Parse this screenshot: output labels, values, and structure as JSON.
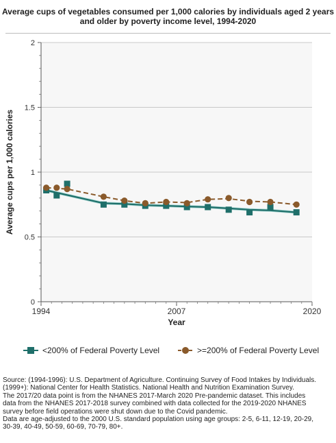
{
  "title": "Average cups of vegetables consumed per 1,000 calories by individuals aged 2 years and older by poverty income level, 1994-2020",
  "colors": {
    "series_low": "#1f6f6a",
    "series_high": "#8a5a2b",
    "plot_bg": "#f7f7f7",
    "grid": "#c8c8c8"
  },
  "legend": {
    "low": "<200% of Federal Poverty Level",
    "high": ">=200% of Federal Poverty Level"
  },
  "source": {
    "line1": "Source: (1994-1996): U.S. Department of Agriculture. Continuing Survey of Food Intakes by Individuals.",
    "line2": "(1999+): National Center for Health Statistics. National Health and Nutrition Examination Survey.",
    "line3": "The 2017/20 data point is from the NHANES 2017-March 2020 Pre-pandemic dataset. This includes",
    "line4": "data from the NHANES 2017-2018 survey combined with data collected for the 2019-2020 NHANES",
    "line5": "survey before field operations were shut down due to the Covid pandemic.",
    "line6": "Data are age-adjusted to the 2000 U.S. standard population using age groups: 2-5, 6-11, 12-19, 20-29,",
    "line7": "30-39, 40-49, 50-59, 60-69, 70-79, 80+."
  },
  "chart_data": {
    "type": "line",
    "title": "Average cups of vegetables consumed per 1,000 calories by individuals aged 2 years and older by poverty income level, 1994-2020",
    "xlabel": "Year",
    "ylabel": "Average cups per 1,000 calories",
    "xlim": [
      1994,
      2020
    ],
    "ylim": [
      0,
      2
    ],
    "x_ticks": [
      "1994",
      "2007",
      "2020"
    ],
    "y_ticks": [
      "0",
      "0.5",
      "1",
      "1.5",
      "2"
    ],
    "grid": "horizontal",
    "legend_position": "bottom",
    "series": [
      {
        "name": "<200% of Federal Poverty Level",
        "marker": "square",
        "line": "solid",
        "points": [
          {
            "x": 1994.5,
            "y": 0.86
          },
          {
            "x": 1995.5,
            "y": 0.82
          },
          {
            "x": 1996.5,
            "y": 0.91
          },
          {
            "x": 2000,
            "y": 0.75
          },
          {
            "x": 2002,
            "y": 0.75
          },
          {
            "x": 2004,
            "y": 0.74
          },
          {
            "x": 2006,
            "y": 0.74
          },
          {
            "x": 2008,
            "y": 0.73
          },
          {
            "x": 2010,
            "y": 0.73
          },
          {
            "x": 2012,
            "y": 0.71
          },
          {
            "x": 2014,
            "y": 0.69
          },
          {
            "x": 2016,
            "y": 0.73
          },
          {
            "x": 2018.5,
            "y": 0.69
          }
        ],
        "trend": [
          {
            "x": 1994.5,
            "y": 0.86
          },
          {
            "x": 2000,
            "y": 0.76
          },
          {
            "x": 2002,
            "y": 0.755
          },
          {
            "x": 2004,
            "y": 0.745
          },
          {
            "x": 2006,
            "y": 0.74
          },
          {
            "x": 2008,
            "y": 0.735
          },
          {
            "x": 2010,
            "y": 0.73
          },
          {
            "x": 2012,
            "y": 0.72
          },
          {
            "x": 2014,
            "y": 0.71
          },
          {
            "x": 2016,
            "y": 0.705
          },
          {
            "x": 2018.5,
            "y": 0.69
          }
        ]
      },
      {
        "name": ">=200% of Federal Poverty Level",
        "marker": "circle",
        "line": "dashed",
        "points": [
          {
            "x": 1994.5,
            "y": 0.88
          },
          {
            "x": 1995.5,
            "y": 0.88
          },
          {
            "x": 1996.5,
            "y": 0.87
          },
          {
            "x": 2000,
            "y": 0.81
          },
          {
            "x": 2002,
            "y": 0.78
          },
          {
            "x": 2004,
            "y": 0.76
          },
          {
            "x": 2006,
            "y": 0.77
          },
          {
            "x": 2008,
            "y": 0.76
          },
          {
            "x": 2010,
            "y": 0.79
          },
          {
            "x": 2012,
            "y": 0.8
          },
          {
            "x": 2014,
            "y": 0.77
          },
          {
            "x": 2016,
            "y": 0.77
          },
          {
            "x": 2018.5,
            "y": 0.75
          }
        ],
        "trend": [
          {
            "x": 1994.5,
            "y": 0.88
          },
          {
            "x": 1996.5,
            "y": 0.87
          },
          {
            "x": 2000,
            "y": 0.81
          },
          {
            "x": 2002,
            "y": 0.78
          },
          {
            "x": 2004,
            "y": 0.76
          },
          {
            "x": 2006,
            "y": 0.77
          },
          {
            "x": 2008,
            "y": 0.765
          },
          {
            "x": 2010,
            "y": 0.79
          },
          {
            "x": 2012,
            "y": 0.795
          },
          {
            "x": 2014,
            "y": 0.775
          },
          {
            "x": 2016,
            "y": 0.77
          },
          {
            "x": 2018.5,
            "y": 0.75
          }
        ]
      }
    ]
  }
}
